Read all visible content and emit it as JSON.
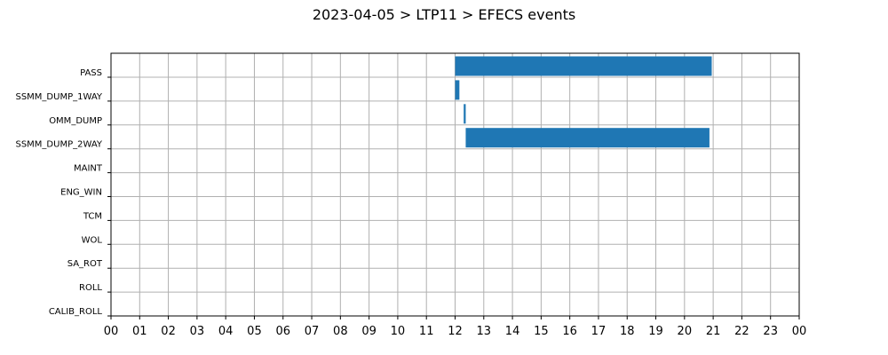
{
  "chart_data": {
    "type": "bar",
    "orientation": "horizontal-timeline",
    "title": "2023-04-05 > LTP11 > EFECS events",
    "xlabel": "",
    "ylabel": "",
    "xlim": [
      0,
      24
    ],
    "x_tick_labels": [
      "00",
      "01",
      "02",
      "03",
      "04",
      "05",
      "06",
      "07",
      "08",
      "09",
      "10",
      "11",
      "12",
      "13",
      "14",
      "15",
      "16",
      "17",
      "18",
      "19",
      "20",
      "21",
      "22",
      "23",
      "00"
    ],
    "categories": [
      "PASS",
      "SSMM_DUMP_1WAY",
      "OMM_DUMP",
      "SSMM_DUMP_2WAY",
      "MAINT",
      "ENG_WIN",
      "TCM",
      "WOL",
      "SA_ROT",
      "ROLL",
      "CALIB_ROLL"
    ],
    "intervals": [
      {
        "category": "PASS",
        "start": 12.0,
        "end": 20.95
      },
      {
        "category": "SSMM_DUMP_1WAY",
        "start": 12.0,
        "end": 12.15
      },
      {
        "category": "OMM_DUMP",
        "start": 12.3,
        "end": 12.37
      },
      {
        "category": "SSMM_DUMP_2WAY",
        "start": 12.37,
        "end": 20.87
      }
    ],
    "grid": true,
    "bar_color": "#1f77b4"
  }
}
